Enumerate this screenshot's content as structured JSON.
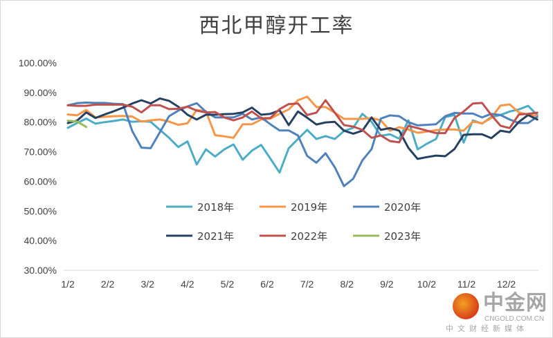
{
  "chart_data": {
    "type": "line",
    "title": "西北甲醇开工率",
    "xlabel": "",
    "ylabel": "",
    "ylim": [
      30,
      100
    ],
    "y_ticks": [
      "100.00%",
      "90.00%",
      "80.00%",
      "70.00%",
      "60.00%",
      "50.00%",
      "40.00%",
      "30.00%"
    ],
    "y_tick_values": [
      100,
      90,
      80,
      70,
      60,
      50,
      40,
      30
    ],
    "x_ticks": [
      "1/2",
      "2/2",
      "3/2",
      "4/2",
      "5/2",
      "6/2",
      "7/2",
      "8/2",
      "9/2",
      "10/2",
      "11/2",
      "12/2"
    ],
    "x_unit": "week index (weekly data starting 1/2)",
    "grid": false,
    "legend": "center, two rows",
    "series": [
      {
        "name": "2018年",
        "color": "#4BACC6",
        "values": [
          78.1,
          79.7,
          81.2,
          79.5,
          80,
          80.4,
          80.9,
          80.1,
          80.3,
          80.1,
          77.4,
          74.7,
          71.6,
          73.5,
          65.7,
          70.8,
          68.4,
          70.8,
          72.5,
          67.3,
          70.4,
          72.3,
          67.7,
          63,
          71.2,
          74.3,
          77.4,
          74.3,
          75.3,
          74.3,
          77,
          78.1,
          82.8,
          80.1,
          75.4,
          75.9,
          74.4,
          80.6,
          70.8,
          72.7,
          74.3,
          81.7,
          82.4,
          73.1,
          80.6,
          79.5,
          81.7,
          82.4,
          83.6,
          84.3,
          85.5,
          82.4
        ]
      },
      {
        "name": "2019年",
        "color": "#F79646",
        "values": [
          82.6,
          82.3,
          84.1,
          81.6,
          81.8,
          82,
          82.1,
          81.9,
          80.2,
          80.6,
          80.9,
          80.2,
          79.1,
          79.6,
          84.1,
          83.7,
          75.6,
          75.2,
          74.7,
          79.3,
          79.3,
          80.9,
          81.2,
          82.8,
          84.3,
          87.4,
          88.6,
          85.1,
          85.1,
          83.2,
          81.1,
          81.1,
          81.1,
          81.4,
          80.6,
          77.1,
          78.3,
          77.5,
          76.4,
          76.8,
          77.3,
          77.5,
          77.5,
          77.1,
          80.2,
          79.6,
          81.4,
          85.6,
          86,
          83.3,
          82.5,
          82.1
        ]
      },
      {
        "name": "2020年",
        "color": "#4F81BD",
        "values": [
          85.7,
          86.4,
          86.6,
          86.5,
          86.5,
          86.2,
          86.1,
          77,
          71.4,
          71.2,
          76.6,
          82,
          83.9,
          85.3,
          86.4,
          83.5,
          81.6,
          81.6,
          81.6,
          82.8,
          80.9,
          81.6,
          79.3,
          77.2,
          77.2,
          75.5,
          68.6,
          66.3,
          69.5,
          64.8,
          58.4,
          60.9,
          67.1,
          70.9,
          81.2,
          82.3,
          82,
          80,
          78.9,
          79.1,
          79.3,
          82,
          83.1,
          82.9,
          82.9,
          81.6,
          82.8,
          82.4,
          80.9,
          79.7,
          79.7,
          81.8
        ]
      },
      {
        "name": "2021年",
        "color": "#254061",
        "values": [
          79.7,
          80.5,
          83.3,
          81.4,
          82.6,
          83.7,
          84.9,
          86.3,
          87.4,
          86.3,
          88,
          87.2,
          85.2,
          82.5,
          80.9,
          82.5,
          82.5,
          82.7,
          82.8,
          83.3,
          84.9,
          82.5,
          82.8,
          84,
          79,
          83.6,
          81.5,
          79.2,
          79.9,
          80.1,
          77.1,
          76.1,
          77.1,
          81.6,
          77.4,
          78,
          77.1,
          71.3,
          67.6,
          68.2,
          68.7,
          68.5,
          70.9,
          75.7,
          75.9,
          75.9,
          74.6,
          77.1,
          76.6,
          80.1,
          82.4,
          80.9
        ]
      },
      {
        "name": "2022年",
        "color": "#C0504D",
        "values": [
          85.7,
          85.5,
          85.5,
          85.9,
          85.9,
          85.9,
          85.9,
          85.2,
          83.3,
          85.7,
          85.7,
          84.4,
          84.5,
          85.2,
          83.9,
          83.3,
          83.4,
          81.6,
          80.6,
          81.6,
          83.6,
          81.3,
          81.4,
          84.4,
          86.1,
          86.3,
          82.4,
          83.2,
          87.4,
          83.2,
          79,
          78.5,
          77.4,
          74.7,
          75.5,
          73.6,
          73.2,
          78.8,
          78,
          77.1,
          76.3,
          76.3,
          81.4,
          83.6,
          86.3,
          86.5,
          82.4,
          78.8,
          78,
          82.6,
          82.8,
          83.2
        ]
      },
      {
        "name": "2023年",
        "color": "#9BBB59",
        "values": [
          80.5,
          80.2,
          78.4
        ]
      }
    ]
  },
  "watermark": {
    "name": "中金网",
    "url": "CNGOLD.COM.CN",
    "tagline": "中文财经新媒体"
  }
}
